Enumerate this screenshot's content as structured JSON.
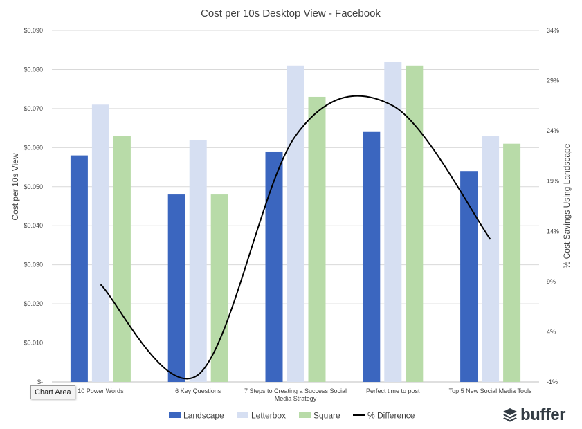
{
  "chart_data": {
    "type": "bar",
    "title": "Cost per 10s Desktop View - Facebook",
    "ylabel": "Cost per 10s View",
    "y2label": "% Cost Savings Using Landscape",
    "categories": [
      "10 Power Words",
      "6 Key Questions",
      "7 Steps to Creating a Success Social Media Strategy",
      "Perfect time to post",
      "Top 5 New Social Media Tools"
    ],
    "category_labels": [
      [
        "10 Power Words"
      ],
      [
        "6 Key Questions"
      ],
      [
        "7 Steps to Creating a Success Social",
        "Media Strategy"
      ],
      [
        "Perfect time to post"
      ],
      [
        "Top 5 New Social Media Tools"
      ]
    ],
    "ylim": [
      0,
      0.09
    ],
    "yticks": [
      0,
      0.01,
      0.02,
      0.03,
      0.04,
      0.05,
      0.06,
      0.07,
      0.08,
      0.09
    ],
    "ytick_labels": [
      "$-",
      "$0.010",
      "$0.020",
      "$0.030",
      "$0.040",
      "$0.050",
      "$0.060",
      "$0.070",
      "$0.080",
      "$0.090"
    ],
    "y2lim": [
      -0.01,
      0.34
    ],
    "y2ticks": [
      -0.01,
      0.04,
      0.09,
      0.14,
      0.19,
      0.24,
      0.29,
      0.34
    ],
    "y2tick_labels": [
      "-1%",
      "4%",
      "9%",
      "14%",
      "19%",
      "24%",
      "29%",
      "34%"
    ],
    "grid": true,
    "legend_position": "bottom",
    "series": [
      {
        "name": "Landscape",
        "type": "bar",
        "axis": "left",
        "color": "#3b66bf",
        "values": [
          0.058,
          0.048,
          0.059,
          0.064,
          0.054
        ]
      },
      {
        "name": "Letterbox",
        "type": "bar",
        "axis": "left",
        "color": "#d6dff2",
        "values": [
          0.071,
          0.062,
          0.081,
          0.082,
          0.063
        ]
      },
      {
        "name": "Square",
        "type": "bar",
        "axis": "left",
        "color": "#b8dba8",
        "values": [
          0.063,
          0.048,
          0.073,
          0.081,
          0.061
        ]
      },
      {
        "name": "% Difference",
        "type": "line",
        "axis": "right",
        "color": "#000000",
        "smooth": true,
        "values": [
          0.087,
          -0.003,
          0.235,
          0.265,
          0.132
        ]
      }
    ]
  },
  "tooltip": {
    "text": "Chart Area"
  },
  "brand": {
    "name": "buffer",
    "icon": "buffer-logo-icon"
  }
}
